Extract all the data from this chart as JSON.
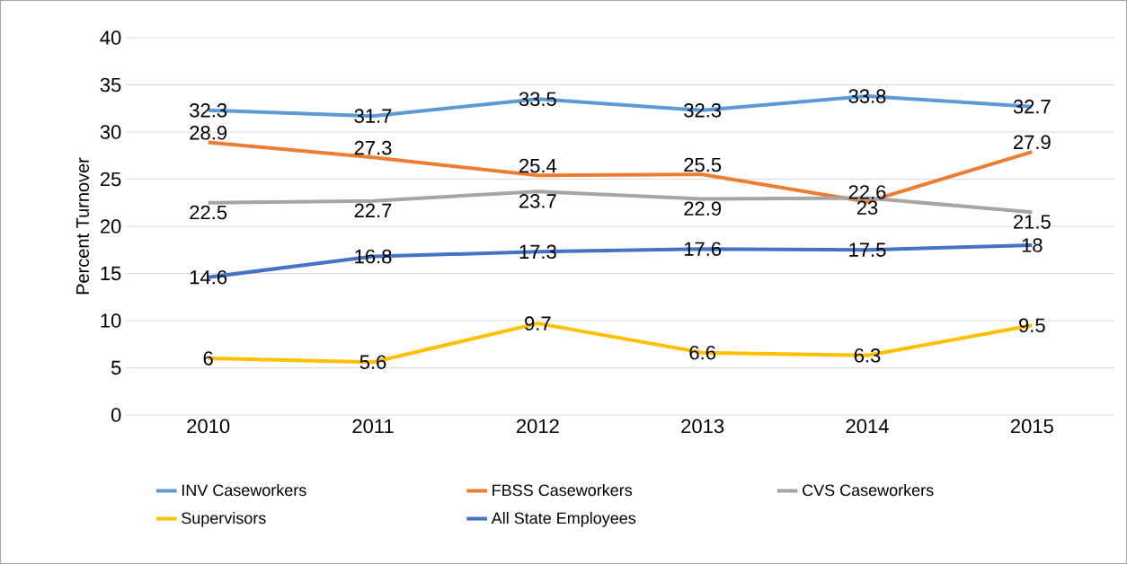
{
  "chart_data": {
    "type": "line",
    "ylabel": "Percent Turnover",
    "categories": [
      "2010",
      "2011",
      "2012",
      "2013",
      "2014",
      "2015"
    ],
    "series": [
      {
        "name": "INV Caseworkers",
        "color": "#5b9bd5",
        "values": [
          32.3,
          31.7,
          33.5,
          32.3,
          33.8,
          32.7
        ]
      },
      {
        "name": "FBSS Caseworkers",
        "color": "#ed7d31",
        "values": [
          28.9,
          27.3,
          25.4,
          25.5,
          22.6,
          27.9
        ]
      },
      {
        "name": "CVS Caseworkers",
        "color": "#a5a5a5",
        "values": [
          22.5,
          22.7,
          23.7,
          22.9,
          23,
          21.5
        ]
      },
      {
        "name": "Supervisors",
        "color": "#ffc000",
        "values": [
          6,
          5.6,
          9.7,
          6.6,
          6.3,
          9.5
        ]
      },
      {
        "name": "All State Employees",
        "color": "#4472c4",
        "values": [
          14.6,
          16.8,
          17.3,
          17.6,
          17.5,
          18
        ]
      }
    ],
    "ylim": [
      0,
      40
    ],
    "yticks": [
      0,
      5,
      10,
      15,
      20,
      25,
      30,
      35,
      40
    ],
    "grid": "y",
    "legend": "bottom",
    "data_labels": true,
    "marker": "none",
    "line_style": "solid"
  }
}
